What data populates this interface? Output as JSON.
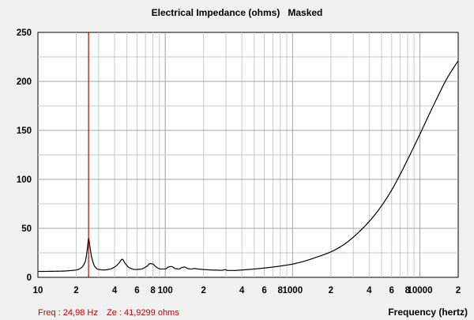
{
  "chart_data": {
    "type": "line",
    "title": "Electrical Impedance (ohms)   Masked",
    "xlabel": "Frequency (hertz)",
    "ylabel": "",
    "x_scale": "log",
    "xlim": [
      10,
      20000
    ],
    "ylim": [
      0,
      250
    ],
    "grid": true,
    "y_ticks": [
      0,
      50,
      100,
      150,
      200,
      250
    ],
    "x_ticks": [
      {
        "value": 10,
        "label": "10"
      },
      {
        "value": 20,
        "label": "2"
      },
      {
        "value": 40,
        "label": "4"
      },
      {
        "value": 60,
        "label": "6"
      },
      {
        "value": 80,
        "label": "8"
      },
      {
        "value": 100,
        "label": "100"
      },
      {
        "value": 200,
        "label": "2"
      },
      {
        "value": 400,
        "label": "4"
      },
      {
        "value": 600,
        "label": "6"
      },
      {
        "value": 800,
        "label": "8"
      },
      {
        "value": 1000,
        "label": "1000"
      },
      {
        "value": 2000,
        "label": "2"
      },
      {
        "value": 4000,
        "label": "4"
      },
      {
        "value": 6000,
        "label": "6"
      },
      {
        "value": 8000,
        "label": "8"
      },
      {
        "value": 10000,
        "label": "10000"
      },
      {
        "value": 20000,
        "label": "2"
      }
    ],
    "series": [
      {
        "color": "#000000",
        "x": [
          10,
          15,
          20,
          22,
          23.5,
          24.5,
          25,
          25.5,
          26.5,
          28,
          30,
          33,
          37,
          40,
          43,
          45,
          46,
          48,
          52,
          58,
          65,
          72,
          76,
          80,
          85,
          92,
          100,
          106,
          112,
          120,
          128,
          135,
          142,
          150,
          160,
          170,
          180,
          200,
          230,
          260,
          280,
          295,
          310,
          340,
          400,
          500,
          600,
          700,
          800,
          1000,
          1200,
          1500,
          2000,
          2500,
          3000,
          4000,
          5000,
          6000,
          7000,
          8000,
          10000,
          12000,
          14000,
          16000,
          18000,
          20000
        ],
        "y": [
          6,
          6.3,
          7.5,
          10,
          16,
          30,
          40,
          33,
          20,
          11,
          8,
          7.5,
          8.5,
          10.5,
          14,
          17.5,
          18.5,
          15,
          10,
          8,
          8.5,
          11.5,
          14,
          13.5,
          10.5,
          8.5,
          8.5,
          10.5,
          11,
          9,
          8.5,
          10,
          10.5,
          9,
          8.5,
          9,
          8.5,
          8,
          7.5,
          7.3,
          7.2,
          7.8,
          7,
          7,
          7.5,
          8.5,
          9.5,
          10.5,
          11.5,
          13.5,
          16,
          20,
          26,
          33,
          41,
          57,
          73,
          89,
          105,
          120,
          146,
          168,
          186,
          201,
          212,
          221
        ]
      }
    ],
    "cursor": {
      "x": 24.98,
      "color": "#c00000"
    },
    "readout": {
      "freq": "Freq : 24,98 Hz",
      "ze": "Ze : 41,9299 ohms"
    },
    "colors": {
      "grid": "#c8c8c8",
      "grid_major": "#a0a0a0",
      "cursor": "#c00000",
      "curve": "#000000"
    }
  }
}
